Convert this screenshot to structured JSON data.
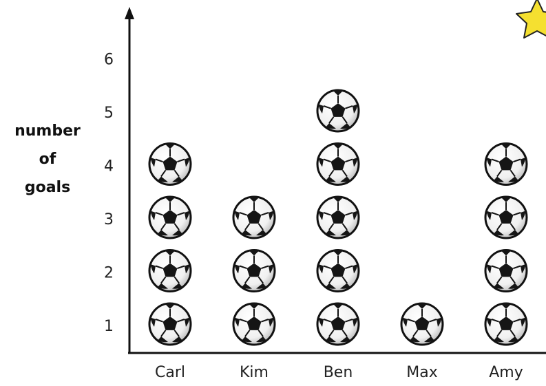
{
  "chart_data": {
    "type": "pictogram",
    "categories": [
      "Carl",
      "Kim",
      "Ben",
      "Max",
      "Amy"
    ],
    "values": [
      4,
      3,
      5,
      1,
      4
    ],
    "yticks": [
      "1",
      "2",
      "3",
      "4",
      "5",
      "6"
    ],
    "ylabel_lines": [
      "number",
      "of",
      "goals"
    ],
    "xlabel": "",
    "title": "",
    "ylim": [
      0,
      6
    ],
    "icon": "soccer-ball-icon",
    "grid": false,
    "legend": "none"
  },
  "decor": {
    "corner_icon": "star-icon",
    "star_color": "#f5e030"
  }
}
